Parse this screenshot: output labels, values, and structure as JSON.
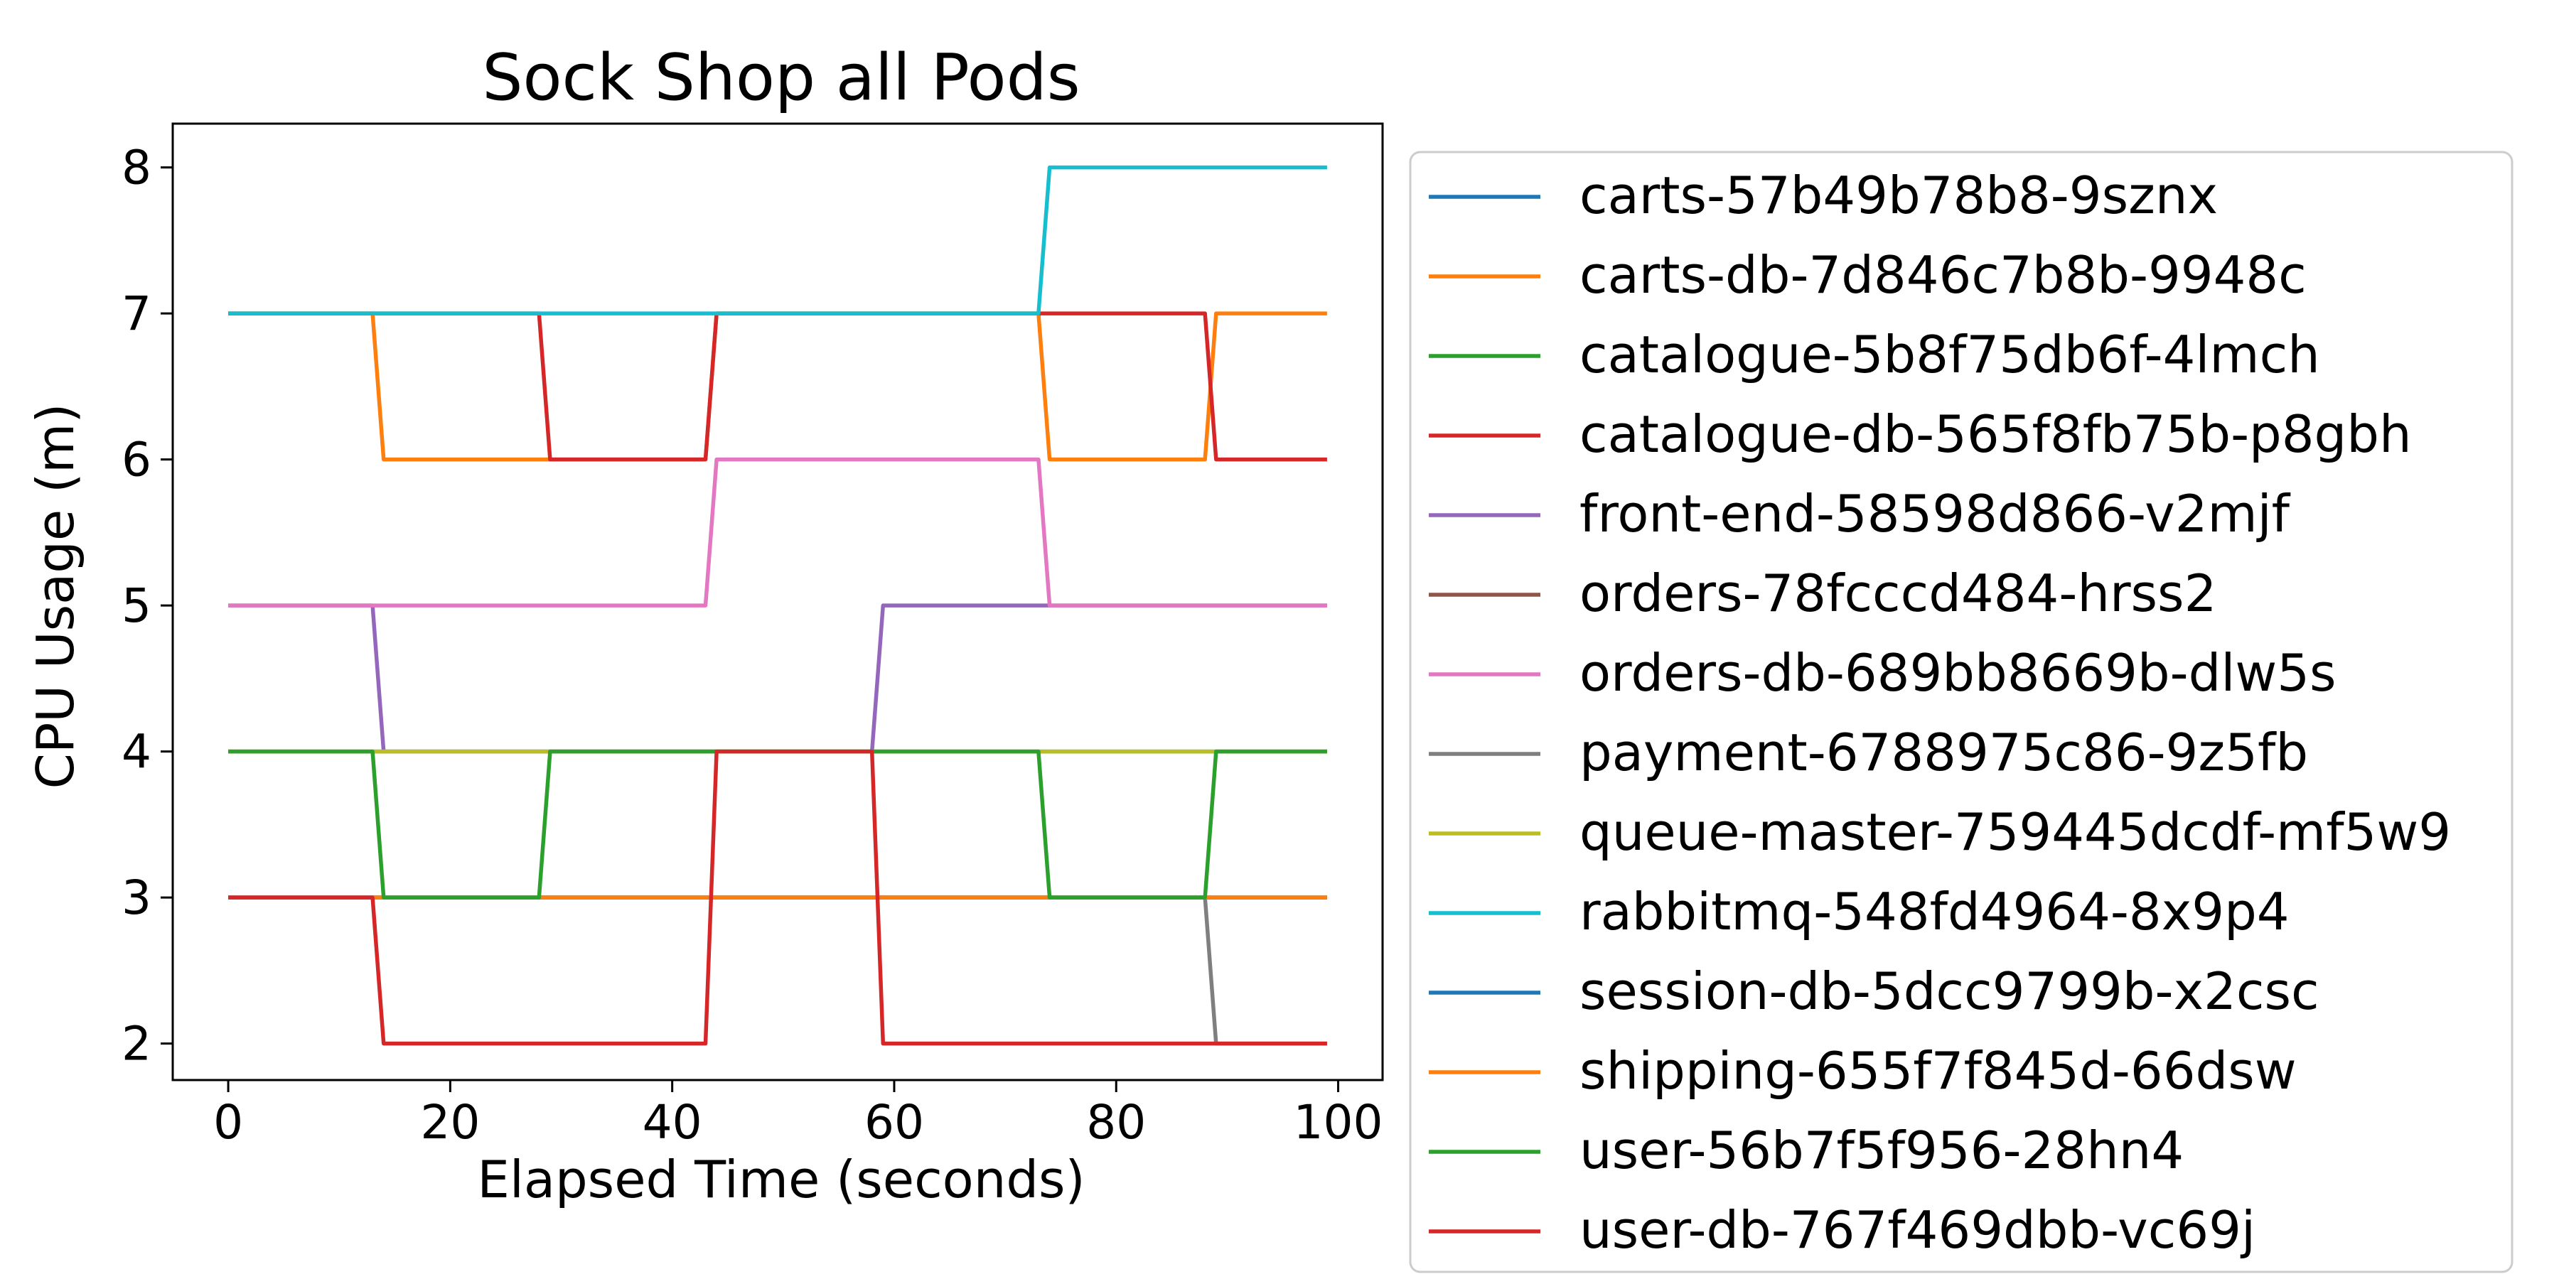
{
  "chart_data": {
    "type": "line",
    "title": "Sock Shop all Pods",
    "xlabel": "Elapsed Time (seconds)",
    "ylabel": "CPU Usage (m)",
    "xlim": [
      -5,
      104
    ],
    "ylim": [
      1.75,
      8.3
    ],
    "xticks": [
      0,
      20,
      40,
      60,
      80,
      100
    ],
    "yticks": [
      2,
      3,
      4,
      5,
      6,
      7,
      8
    ],
    "grid": false,
    "legend_position": "outside-right",
    "series": [
      {
        "name": "carts-57b49b78b8-9sznx",
        "color": "#1f77b4",
        "points": [
          [
            0,
            3
          ],
          [
            99,
            3
          ]
        ]
      },
      {
        "name": "carts-db-7d846c7b8b-9948c",
        "color": "#ff7f0e",
        "points": [
          [
            0,
            7
          ],
          [
            13,
            7
          ],
          [
            14,
            6
          ],
          [
            28,
            6
          ],
          [
            29,
            6
          ],
          [
            43,
            6
          ],
          [
            44,
            7
          ],
          [
            73,
            7
          ],
          [
            74,
            6
          ],
          [
            88,
            6
          ],
          [
            89,
            7
          ],
          [
            99,
            7
          ]
        ]
      },
      {
        "name": "catalogue-5b8f75db6f-4lmch",
        "color": "#2ca02c",
        "points": [
          [
            0,
            4
          ],
          [
            99,
            4
          ]
        ]
      },
      {
        "name": "catalogue-db-565f8fb75b-p8gbh",
        "color": "#d62728",
        "points": [
          [
            0,
            7
          ],
          [
            28,
            7
          ],
          [
            29,
            6
          ],
          [
            43,
            6
          ],
          [
            44,
            7
          ],
          [
            88,
            7
          ],
          [
            89,
            6
          ],
          [
            99,
            6
          ]
        ]
      },
      {
        "name": "front-end-58598d866-v2mjf",
        "color": "#9467bd",
        "points": [
          [
            0,
            5
          ],
          [
            13,
            5
          ],
          [
            14,
            4
          ],
          [
            58,
            4
          ],
          [
            59,
            5
          ],
          [
            99,
            5
          ]
        ]
      },
      {
        "name": "orders-78fcccd484-hrss2",
        "color": "#8c564b",
        "points": [
          [
            0,
            3
          ],
          [
            99,
            3
          ]
        ]
      },
      {
        "name": "orders-db-689bb8669b-dlw5s",
        "color": "#e377c2",
        "points": [
          [
            0,
            5
          ],
          [
            43,
            5
          ],
          [
            44,
            6
          ],
          [
            73,
            6
          ],
          [
            74,
            5
          ],
          [
            99,
            5
          ]
        ]
      },
      {
        "name": "payment-6788975c86-9z5fb",
        "color": "#7f7f7f",
        "points": [
          [
            0,
            3
          ],
          [
            88,
            3
          ],
          [
            89,
            2
          ],
          [
            99,
            2
          ]
        ]
      },
      {
        "name": "queue-master-759445dcdf-mf5w9",
        "color": "#bcbd22",
        "points": [
          [
            0,
            4
          ],
          [
            99,
            4
          ]
        ]
      },
      {
        "name": "rabbitmq-548fd4964-8x9p4",
        "color": "#17becf",
        "points": [
          [
            0,
            7
          ],
          [
            73,
            7
          ],
          [
            74,
            8
          ],
          [
            99,
            8
          ]
        ]
      },
      {
        "name": "session-db-5dcc9799b-x2csc",
        "color": "#1f77b4",
        "points": [
          [
            0,
            3
          ],
          [
            99,
            3
          ]
        ]
      },
      {
        "name": "shipping-655f7f845d-66dsw",
        "color": "#ff7f0e",
        "points": [
          [
            0,
            3
          ],
          [
            99,
            3
          ]
        ]
      },
      {
        "name": "user-56b7f5f956-28hn4",
        "color": "#2ca02c",
        "points": [
          [
            0,
            4
          ],
          [
            13,
            4
          ],
          [
            14,
            3
          ],
          [
            28,
            3
          ],
          [
            29,
            4
          ],
          [
            73,
            4
          ],
          [
            74,
            3
          ],
          [
            88,
            3
          ],
          [
            89,
            4
          ],
          [
            99,
            4
          ]
        ]
      },
      {
        "name": "user-db-767f469dbb-vc69j",
        "color": "#d62728",
        "points": [
          [
            0,
            3
          ],
          [
            13,
            3
          ],
          [
            14,
            2
          ],
          [
            43,
            2
          ],
          [
            44,
            4
          ],
          [
            58,
            4
          ],
          [
            59,
            2
          ],
          [
            88,
            2
          ],
          [
            89,
            2
          ],
          [
            99,
            2
          ]
        ]
      }
    ]
  }
}
